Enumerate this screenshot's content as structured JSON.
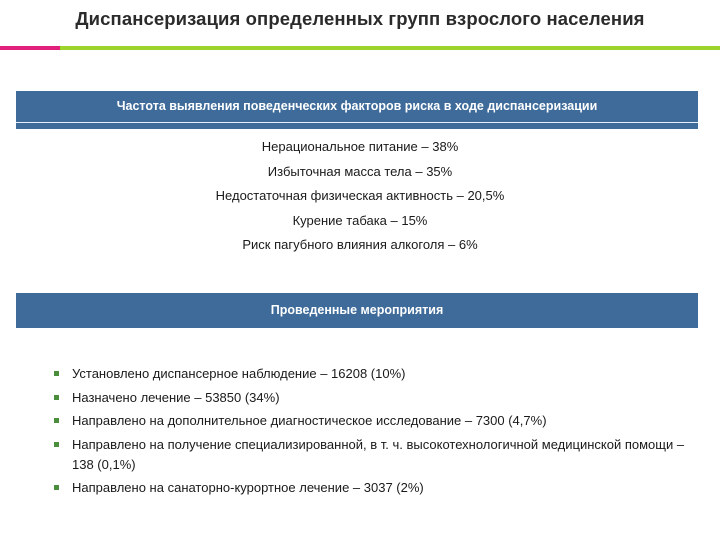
{
  "title": "Диспансеризация определенных групп взрослого населения",
  "colors": {
    "accent_pink": "#e0207c",
    "accent_green": "#9bd32a",
    "banner_blue": "#3e6b9a",
    "bullet_green": "#4a8d3a"
  },
  "section_risk": {
    "heading": "Частота выявления поведенческих факторов риска в  ходе диспансеризации",
    "factors": [
      "Нерациональное питание – 38%",
      "Избыточная масса тела – 35%",
      "Недостаточная физическая активность – 20,5%",
      "Курение табака – 15%",
      "Риск   пагубного влияния алкоголя – 6%"
    ]
  },
  "section_measures": {
    "heading": "Проведенные мероприятия",
    "bullet_icon": "square-bullet-icon",
    "items": [
      "Установлено диспансерное наблюдение – 16208 (10%)",
      "Назначено лечение – 53850 (34%)",
      "Направлено на дополнительное диагностическое исследование – 7300 (4,7%)",
      "Направлено на получение специализированной, в т. ч. высокотехнологичной медицинской помощи – 138 (0,1%)",
      "Направлено на санаторно-курортное лечение – 3037 (2%)"
    ]
  }
}
